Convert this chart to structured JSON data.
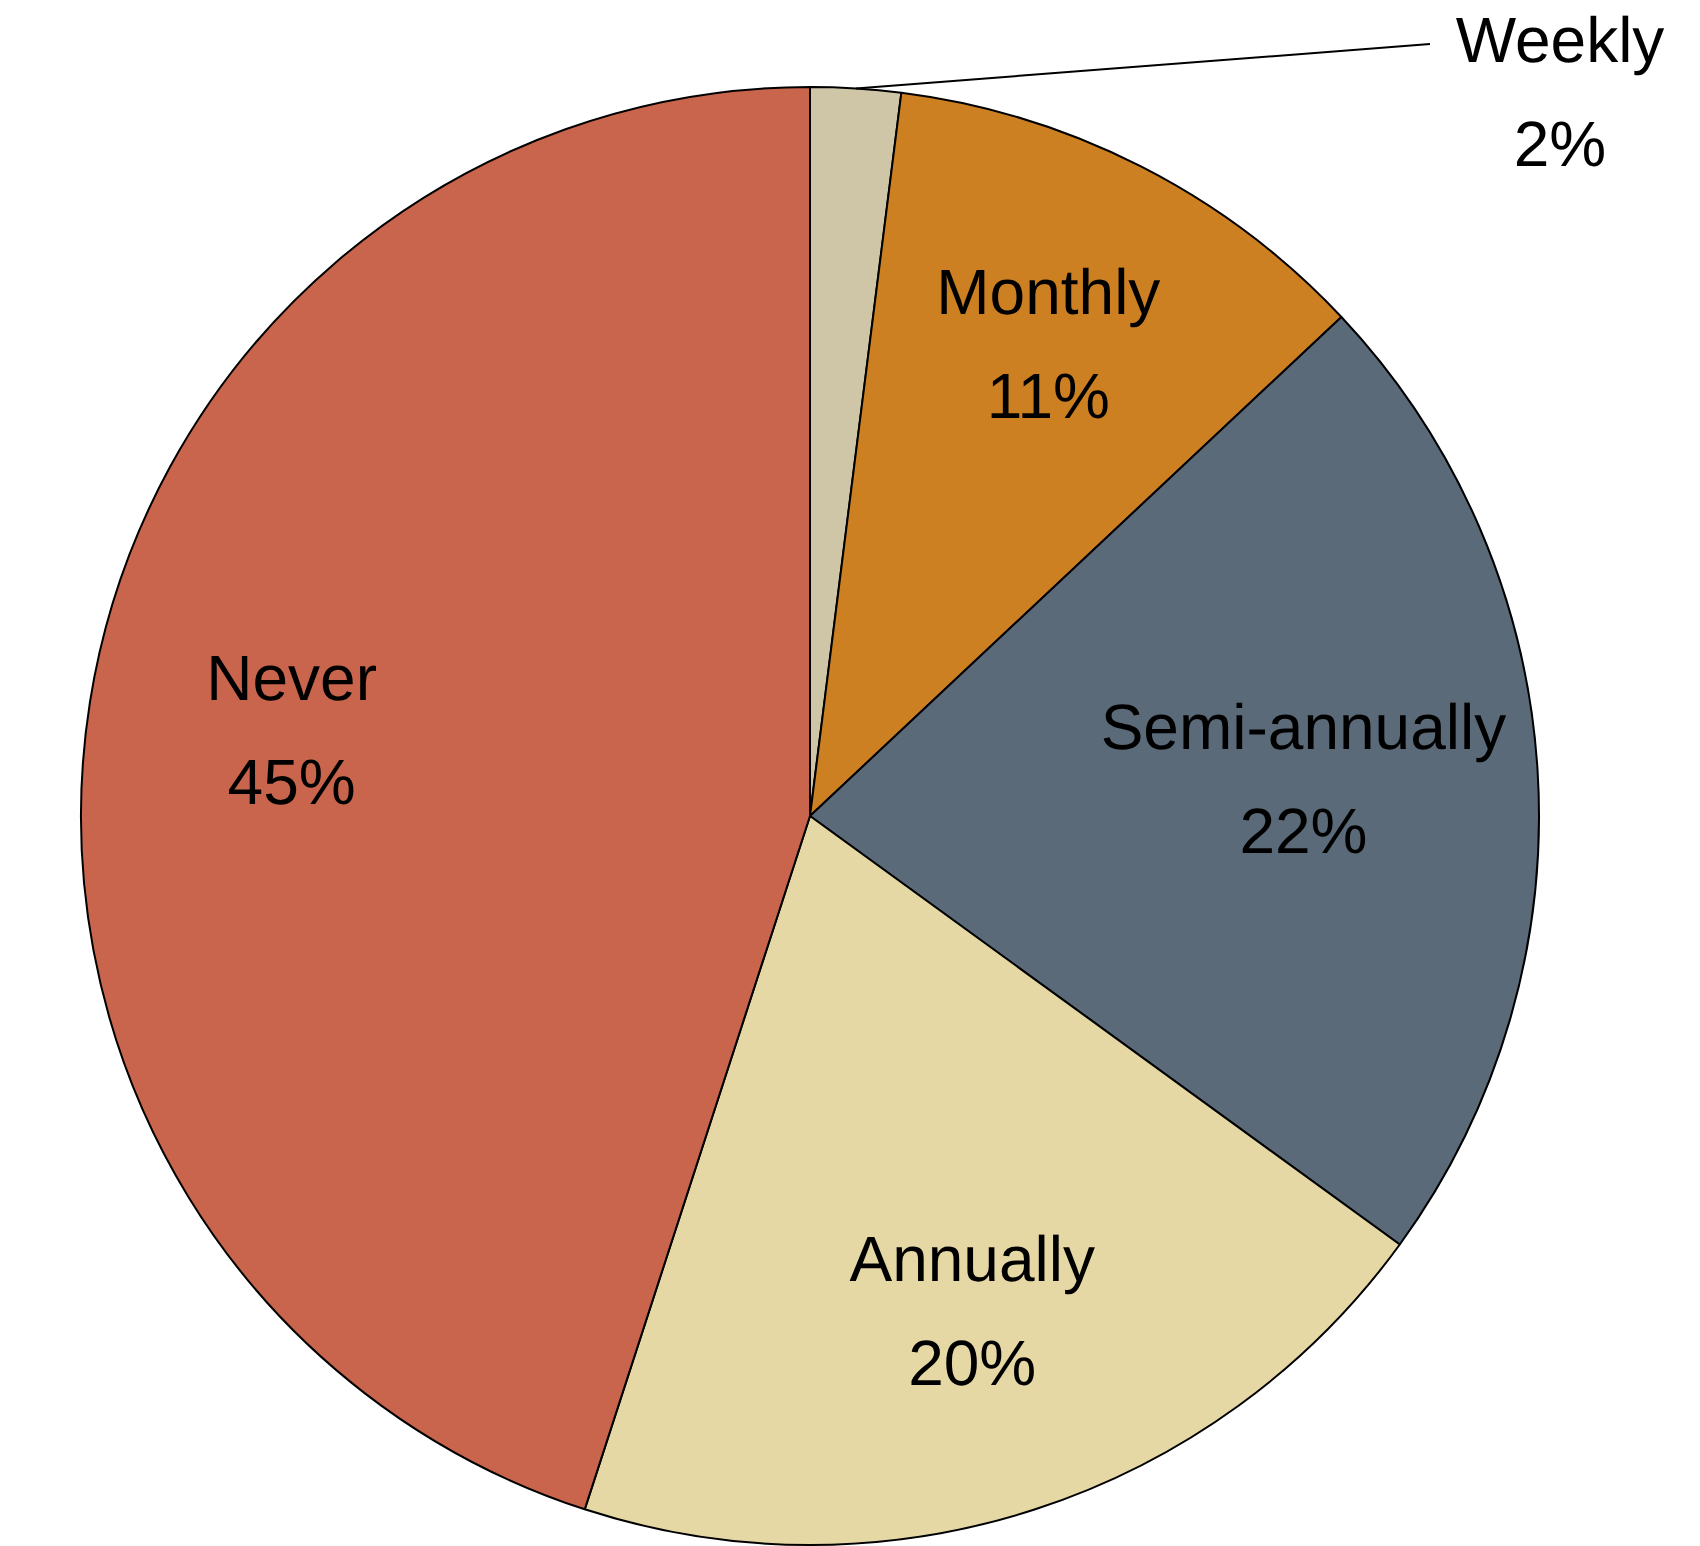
{
  "chart_data": {
    "type": "pie",
    "categories": [
      "Weekly",
      "Monthly",
      "Semi-annually",
      "Annually",
      "Never"
    ],
    "values": [
      2,
      11,
      22,
      20,
      45
    ],
    "colors": [
      "#cfc6a8",
      "#cd8022",
      "#5a6a78",
      "#e5d8a5",
      "#c8654c"
    ],
    "value_labels": [
      "2%",
      "11%",
      "22%",
      "20%",
      "45%"
    ],
    "legend": false
  }
}
